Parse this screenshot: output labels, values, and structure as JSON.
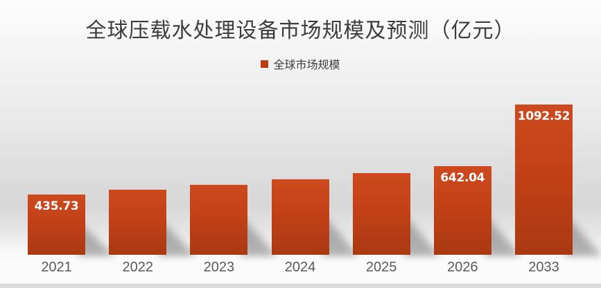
{
  "chart": {
    "title": "全球压载水处理设备市场规模及预测（亿元）",
    "legend_label": "全球市场规模"
  },
  "chart_data": {
    "type": "bar",
    "title": "全球压载水处理设备市场规模及预测（亿元）",
    "unit": "亿元",
    "legend_position": "top-center",
    "grid": false,
    "y_axis_shown": false,
    "categories": [
      "2021",
      "2022",
      "2023",
      "2024",
      "2025",
      "2026",
      "2033"
    ],
    "series": [
      {
        "name": "全球市场规模",
        "values": [
          435.73,
          471,
          509,
          550,
          594,
          642.04,
          1092.52
        ],
        "labels_shown": [
          "435.73",
          null,
          null,
          null,
          null,
          "642.04",
          "1092.52"
        ]
      }
    ],
    "ylim": [
      0,
      1150
    ],
    "colors": {
      "bar_gradient_top": "#cd4a1f",
      "bar_gradient_bottom": "#a93912",
      "legend_swatch": "#bb3b12",
      "value_label_text": "#ffffff",
      "tick_label_text": "#595959",
      "title_text": "#3d3d3d"
    }
  }
}
